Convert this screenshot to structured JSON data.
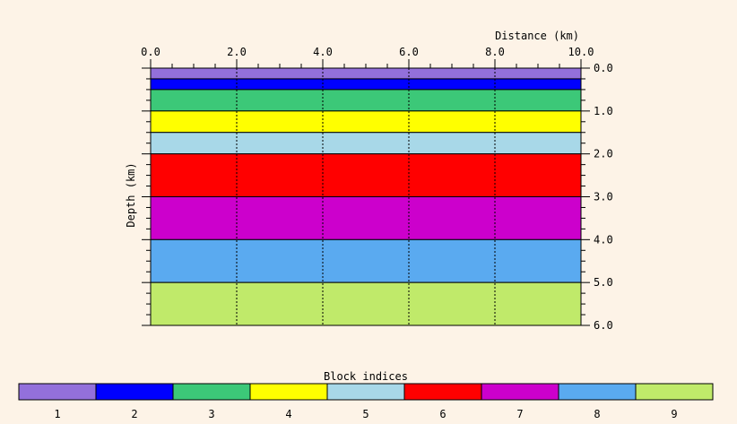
{
  "chart_data": {
    "type": "heatmap",
    "title": "",
    "xlabel": "Distance (km)",
    "ylabel": "Depth (km)",
    "xlim": [
      0,
      10
    ],
    "ylim": [
      0,
      6
    ],
    "x_ticks": [
      "0.0",
      "2.0",
      "4.0",
      "6.0",
      "8.0",
      "10.0"
    ],
    "y_ticks": [
      "0.0",
      "1.0",
      "2.0",
      "3.0",
      "4.0",
      "5.0",
      "6.0"
    ],
    "x_tick_values": [
      0,
      2,
      4,
      6,
      8,
      10
    ],
    "y_tick_values": [
      0,
      1,
      2,
      3,
      4,
      5,
      6
    ],
    "x_axis_position": "top",
    "y_axis_position": "right",
    "grid": "vertical dotted lines at major x ticks",
    "layers": [
      {
        "block": 1,
        "top": 0.0,
        "bottom": 0.25
      },
      {
        "block": 2,
        "top": 0.25,
        "bottom": 0.5
      },
      {
        "block": 3,
        "top": 0.5,
        "bottom": 1.0
      },
      {
        "block": 4,
        "top": 1.0,
        "bottom": 1.5
      },
      {
        "block": 5,
        "top": 1.5,
        "bottom": 2.0
      },
      {
        "block": 6,
        "top": 2.0,
        "bottom": 3.0
      },
      {
        "block": 7,
        "top": 3.0,
        "bottom": 4.0
      },
      {
        "block": 8,
        "top": 4.0,
        "bottom": 5.0
      },
      {
        "block": 9,
        "top": 5.0,
        "bottom": 6.0
      }
    ],
    "legend": {
      "title": "Block indices",
      "placement": "bottom",
      "items": [
        "1",
        "2",
        "3",
        "4",
        "5",
        "6",
        "7",
        "8",
        "9"
      ],
      "colors": [
        "#9370db",
        "#0000ff",
        "#3cc878",
        "#ffff00",
        "#a8d8e8",
        "#ff0000",
        "#cc00cc",
        "#5aaaf0",
        "#c0ea6a"
      ]
    }
  }
}
